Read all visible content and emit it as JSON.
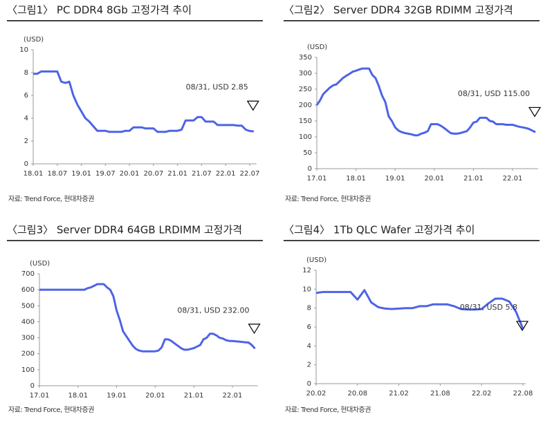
{
  "chart_data": [
    {
      "type": "line",
      "title": "〈그림1〉 PC DDR4 8Gb 고정가격 추이",
      "unit": "(USD)",
      "annotation": "08/31,  USD 2.85",
      "source": "자료: Trend Force, 현대차증권",
      "color": "#4d63e6",
      "categories": [
        "18.01",
        null,
        null,
        null,
        null,
        null,
        "18.07",
        null,
        null,
        null,
        null,
        null,
        "19.01",
        null,
        null,
        null,
        null,
        null,
        "19.07",
        null,
        null,
        null,
        null,
        null,
        "20.01",
        null,
        null,
        null,
        null,
        null,
        "20.07",
        null,
        null,
        null,
        null,
        null,
        "21.01",
        null,
        null,
        null,
        null,
        null,
        "21.07",
        null,
        null,
        null,
        null,
        null,
        "22.01",
        null,
        null,
        null,
        null,
        null,
        "22.07",
        null
      ],
      "values": [
        7.9,
        7.9,
        8.1,
        8.1,
        8.1,
        8.1,
        8.1,
        7.2,
        7.1,
        7.2,
        6.0,
        5.2,
        4.6,
        4.0,
        3.7,
        3.3,
        2.9,
        2.9,
        2.9,
        2.8,
        2.8,
        2.8,
        2.8,
        2.9,
        2.9,
        3.2,
        3.2,
        3.2,
        3.1,
        3.1,
        3.1,
        2.8,
        2.8,
        2.8,
        2.9,
        2.9,
        2.9,
        3.0,
        3.8,
        3.8,
        3.8,
        4.1,
        4.1,
        3.7,
        3.7,
        3.7,
        3.4,
        3.4,
        3.4,
        3.4,
        3.4,
        3.35,
        3.35,
        3.0,
        2.88,
        2.85
      ],
      "ylim": [
        0,
        10
      ],
      "yticks": [
        0,
        2,
        4,
        6,
        8,
        10
      ]
    },
    {
      "type": "line",
      "title": "〈그림2〉 Server DDR4 32GB RDIMM 고정가격",
      "unit": "(USD)",
      "annotation": "08/31,  USD 115.00",
      "source": "자료: Trend Force, 현대차증권",
      "color": "#4d63e6",
      "categories": [
        "17.01",
        null,
        null,
        null,
        null,
        null,
        null,
        null,
        null,
        null,
        null,
        null,
        "18.01",
        null,
        null,
        null,
        null,
        null,
        null,
        null,
        null,
        null,
        null,
        null,
        "19.01",
        null,
        null,
        null,
        null,
        null,
        null,
        null,
        null,
        null,
        null,
        null,
        "20.01",
        null,
        null,
        null,
        null,
        null,
        null,
        null,
        null,
        null,
        null,
        null,
        "21.01",
        null,
        null,
        null,
        null,
        null,
        null,
        null,
        null,
        null,
        null,
        null,
        "22.01",
        null,
        null,
        null,
        null,
        null,
        null,
        null
      ],
      "values": [
        200,
        215,
        235,
        245,
        255,
        262,
        265,
        275,
        285,
        292,
        298,
        305,
        308,
        312,
        315,
        315,
        315,
        295,
        285,
        260,
        230,
        210,
        165,
        150,
        130,
        120,
        115,
        112,
        110,
        108,
        105,
        105,
        110,
        113,
        118,
        140,
        140,
        140,
        135,
        128,
        120,
        112,
        110,
        110,
        112,
        115,
        118,
        130,
        145,
        148,
        160,
        160,
        160,
        150,
        148,
        140,
        140,
        140,
        138,
        138,
        138,
        135,
        132,
        130,
        128,
        125,
        120,
        115
      ],
      "ylim": [
        0,
        350
      ],
      "yticks": [
        0,
        50,
        100,
        150,
        200,
        250,
        300,
        350
      ]
    },
    {
      "type": "line",
      "title": "〈그림3〉 Server DDR4 64GB LRDIMM 고정가격",
      "unit": "(USD)",
      "annotation": "08/31,  USD 232.00",
      "source": "자료: Trend Force, 현대차증권",
      "color": "#4d63e6",
      "categories": [
        "17.01",
        null,
        null,
        null,
        null,
        null,
        null,
        null,
        null,
        null,
        null,
        null,
        "18.01",
        null,
        null,
        null,
        null,
        null,
        null,
        null,
        null,
        null,
        null,
        null,
        "19.01",
        null,
        null,
        null,
        null,
        null,
        null,
        null,
        null,
        null,
        null,
        null,
        "20.01",
        null,
        null,
        null,
        null,
        null,
        null,
        null,
        null,
        null,
        null,
        null,
        "21.01",
        null,
        null,
        null,
        null,
        null,
        null,
        null,
        null,
        null,
        null,
        null,
        "22.01",
        null,
        null,
        null,
        null,
        null,
        null,
        null
      ],
      "values": [
        600,
        600,
        600,
        600,
        600,
        600,
        600,
        600,
        600,
        600,
        600,
        600,
        600,
        600,
        600,
        610,
        615,
        625,
        635,
        635,
        635,
        615,
        600,
        560,
        470,
        410,
        340,
        310,
        280,
        250,
        230,
        220,
        215,
        215,
        215,
        215,
        215,
        220,
        240,
        290,
        290,
        280,
        265,
        250,
        235,
        225,
        225,
        230,
        235,
        245,
        255,
        290,
        300,
        325,
        325,
        315,
        300,
        295,
        285,
        280,
        280,
        278,
        276,
        274,
        272,
        270,
        255,
        232
      ],
      "ylim": [
        0,
        700
      ],
      "yticks": [
        0,
        100,
        200,
        300,
        400,
        500,
        600,
        700
      ]
    },
    {
      "type": "line",
      "title": "〈그림4〉 1Tb QLC Wafer 고정가격 추이",
      "unit": "(USD)",
      "annotation": "08/31,  USD 5.8",
      "source": "자료: Trend Force, 현대차증권",
      "color": "#4d63e6",
      "categories": [
        "20.02",
        null,
        null,
        null,
        null,
        null,
        "20.08",
        null,
        null,
        null,
        null,
        null,
        "21.02",
        null,
        null,
        null,
        null,
        null,
        "21.08",
        null,
        null,
        null,
        null,
        null,
        "22.02",
        null,
        null,
        null,
        null,
        null,
        "22.08"
      ],
      "values": [
        9.6,
        9.7,
        9.7,
        9.7,
        9.7,
        9.7,
        8.9,
        9.9,
        8.6,
        8.1,
        7.95,
        7.9,
        7.95,
        8.0,
        8.0,
        8.2,
        8.2,
        8.4,
        8.4,
        8.4,
        8.2,
        7.9,
        7.85,
        7.85,
        7.9,
        8.5,
        9.0,
        9.0,
        8.7,
        7.6,
        5.8
      ],
      "ylim": [
        0,
        12
      ],
      "yticks": [
        0,
        2,
        4,
        6,
        8,
        10,
        12
      ]
    }
  ]
}
